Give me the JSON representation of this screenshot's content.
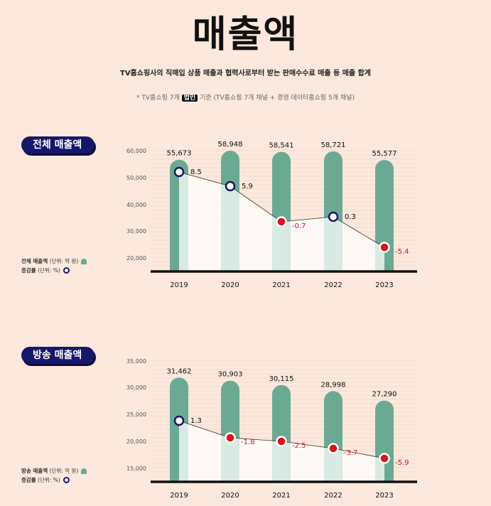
{
  "page": {
    "title": "매출액",
    "subtitle": "TV홈쇼핑사의 직매입 상품 매출과 협력사로부터 받는 판매수수료 매출 등 매출 합계",
    "note_prefix": "* TV홈쇼핑 7개",
    "note_badge": "법인",
    "note_suffix": "기준 (TV홈쇼핑 7개 채널 + 경영 데이터홈쇼핑 5개 채널)"
  },
  "colors": {
    "background": "#fce8dc",
    "bar": "#6aaa93",
    "pill": "#16166a",
    "positive_marker": "#16166a",
    "negative_marker": "#e0101c",
    "negative_text": "#d0141c"
  },
  "chart_data": [
    {
      "type": "bar",
      "title": "전체 매출액",
      "categories": [
        "2019",
        "2020",
        "2021",
        "2022",
        "2023"
      ],
      "ylim": [
        15000,
        60000
      ],
      "yticks": [
        "60,000",
        "50,000",
        "40,000",
        "30,000",
        "20,000"
      ],
      "grid": true,
      "series": [
        {
          "name": "전체 매출액",
          "unit": "(단위: 억 원)",
          "values": [
            55673,
            58948,
            58541,
            58721,
            55577
          ],
          "labels": [
            "55,673",
            "58,948",
            "58,541",
            "58,721",
            "55,577"
          ]
        },
        {
          "name": "증감률",
          "unit": "(단위: %)",
          "values": [
            8.5,
            5.9,
            -0.7,
            0.3,
            -5.4
          ],
          "labels": [
            "8.5",
            "5.9",
            "-0.7",
            "0.3",
            "-5.4"
          ]
        }
      ]
    },
    {
      "type": "bar",
      "title": "방송 매출액",
      "categories": [
        "2019",
        "2020",
        "2021",
        "2022",
        "2023"
      ],
      "ylim": [
        12500,
        35000
      ],
      "yticks": [
        "35,000",
        "30,000",
        "25,000",
        "20,000",
        "15,000"
      ],
      "grid": true,
      "series": [
        {
          "name": "방송 매출액",
          "unit": "(단위: 억 원)",
          "values": [
            31462,
            30903,
            30115,
            28998,
            27290
          ],
          "labels": [
            "31,462",
            "30,903",
            "30,115",
            "28,998",
            "27,290"
          ]
        },
        {
          "name": "증감률",
          "unit": "(단위: %)",
          "values": [
            1.3,
            -1.8,
            -2.5,
            -3.7,
            -5.9
          ],
          "labels": [
            "1.3",
            "-1.8",
            "-2.5",
            "-3.7",
            "-5.9"
          ]
        }
      ]
    }
  ]
}
